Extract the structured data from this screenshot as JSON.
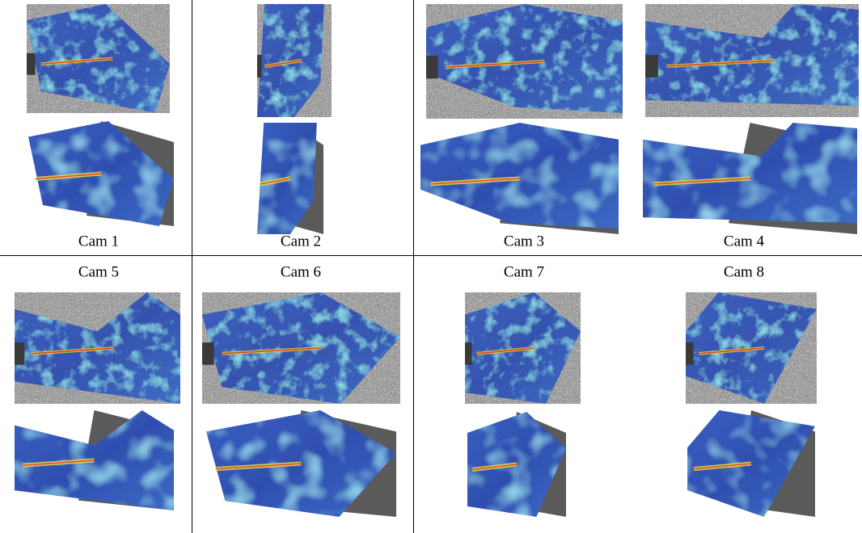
{
  "panels": [
    {
      "label": "Cam 1"
    },
    {
      "label": "Cam 2"
    },
    {
      "label": "Cam 3"
    },
    {
      "label": "Cam 4"
    },
    {
      "label": "Cam 5"
    },
    {
      "label": "Cam 6"
    },
    {
      "label": "Cam 7"
    },
    {
      "label": "Cam 8"
    }
  ]
}
